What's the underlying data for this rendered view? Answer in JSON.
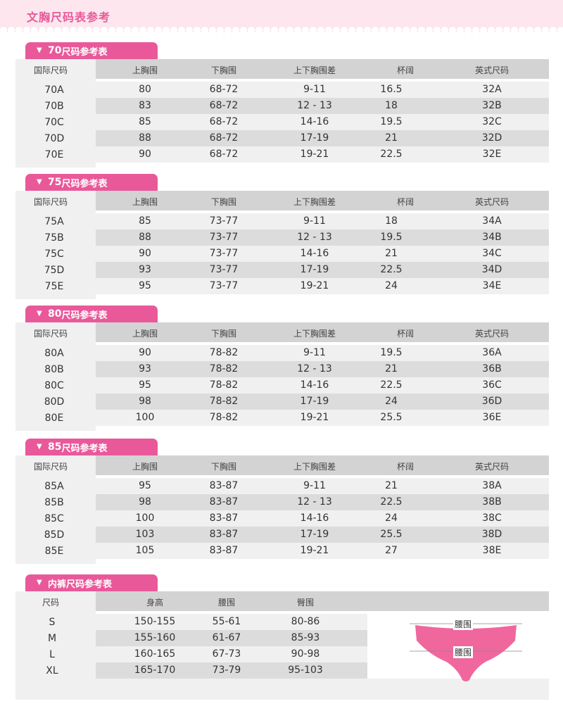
{
  "page_title": "文胸尺码表参考",
  "bra_tables": [
    {
      "tab_num": "70",
      "tab_suffix": "尺码参考表",
      "headers": [
        "国际尺码",
        "上胸围",
        "下胸围",
        "上下胸围差",
        "杯阔",
        "英式尺码"
      ],
      "sizes": [
        "70A",
        "70B",
        "70C",
        "70D",
        "70E"
      ],
      "rows": [
        [
          "80",
          "68-72",
          "9-11",
          "16.5",
          "32A"
        ],
        [
          "83",
          "68-72",
          "12 - 13",
          "18",
          "32B"
        ],
        [
          "85",
          "68-72",
          "14-16",
          "19.5",
          "32C"
        ],
        [
          "88",
          "68-72",
          "17-19",
          "21",
          "32D"
        ],
        [
          "90",
          "68-72",
          "19-21",
          "22.5",
          "32E"
        ]
      ]
    },
    {
      "tab_num": "75",
      "tab_suffix": "尺码参考表",
      "headers": [
        "国际尺码",
        "上胸围",
        "下胸围",
        "上下胸围差",
        "杯阔",
        "英式尺码"
      ],
      "sizes": [
        "75A",
        "75B",
        "75C",
        "75D",
        "75E"
      ],
      "rows": [
        [
          "85",
          "73-77",
          "9-11",
          "18",
          "34A"
        ],
        [
          "88",
          "73-77",
          "12 - 13",
          "19.5",
          "34B"
        ],
        [
          "90",
          "73-77",
          "14-16",
          "21",
          "34C"
        ],
        [
          "93",
          "73-77",
          "17-19",
          "22.5",
          "34D"
        ],
        [
          "95",
          "73-77",
          "19-21",
          "24",
          "34E"
        ]
      ]
    },
    {
      "tab_num": "80",
      "tab_suffix": "尺码参考表",
      "headers": [
        "国际尺码",
        "上胸围",
        "下胸围",
        "上下胸围差",
        "杯阔",
        "英式尺码"
      ],
      "sizes": [
        "80A",
        "80B",
        "80C",
        "80D",
        "80E"
      ],
      "rows": [
        [
          "90",
          "78-82",
          "9-11",
          "19.5",
          "36A"
        ],
        [
          "93",
          "78-82",
          "12 - 13",
          "21",
          "36B"
        ],
        [
          "95",
          "78-82",
          "14-16",
          "22.5",
          "36C"
        ],
        [
          "98",
          "78-82",
          "17-19",
          "24",
          "36D"
        ],
        [
          "100",
          "78-82",
          "19-21",
          "25.5",
          "36E"
        ]
      ]
    },
    {
      "tab_num": "85",
      "tab_suffix": "尺码参考表",
      "headers": [
        "国际尺码",
        "上胸围",
        "下胸围",
        "上下胸围差",
        "杯阔",
        "英式尺码"
      ],
      "sizes": [
        "85A",
        "85B",
        "85C",
        "85D",
        "85E"
      ],
      "rows": [
        [
          "95",
          "83-87",
          "9-11",
          "21",
          "38A"
        ],
        [
          "98",
          "83-87",
          "12 - 13",
          "22.5",
          "38B"
        ],
        [
          "100",
          "83-87",
          "14-16",
          "24",
          "38C"
        ],
        [
          "103",
          "83-87",
          "17-19",
          "25.5",
          "38D"
        ],
        [
          "105",
          "83-87",
          "19-21",
          "27",
          "38E"
        ]
      ]
    }
  ],
  "panty_table": {
    "tab_label": "内裤尺码参考表",
    "headers": [
      "尺码",
      "身高",
      "腰围",
      "臀围"
    ],
    "sizes": [
      "S",
      "M",
      "L",
      "XL"
    ],
    "rows": [
      [
        "150-155",
        "55-61",
        "80-86"
      ],
      [
        "155-160",
        "61-67",
        "85-93"
      ],
      [
        "160-165",
        "67-73",
        "90-98"
      ],
      [
        "165-170",
        "73-79",
        "95-103"
      ]
    ],
    "illustration": {
      "icon": "briefs-diagram-icon",
      "label_top": "腰围",
      "label_middle": "腰围",
      "fill_color": "#f0679e"
    }
  },
  "colors": {
    "accent": "#e9599a",
    "banner_bg": "#fde6ee",
    "header_grey": "#d3d3d3",
    "row_grey": "#dcdcdc",
    "row_light": "#f0f0f0"
  }
}
